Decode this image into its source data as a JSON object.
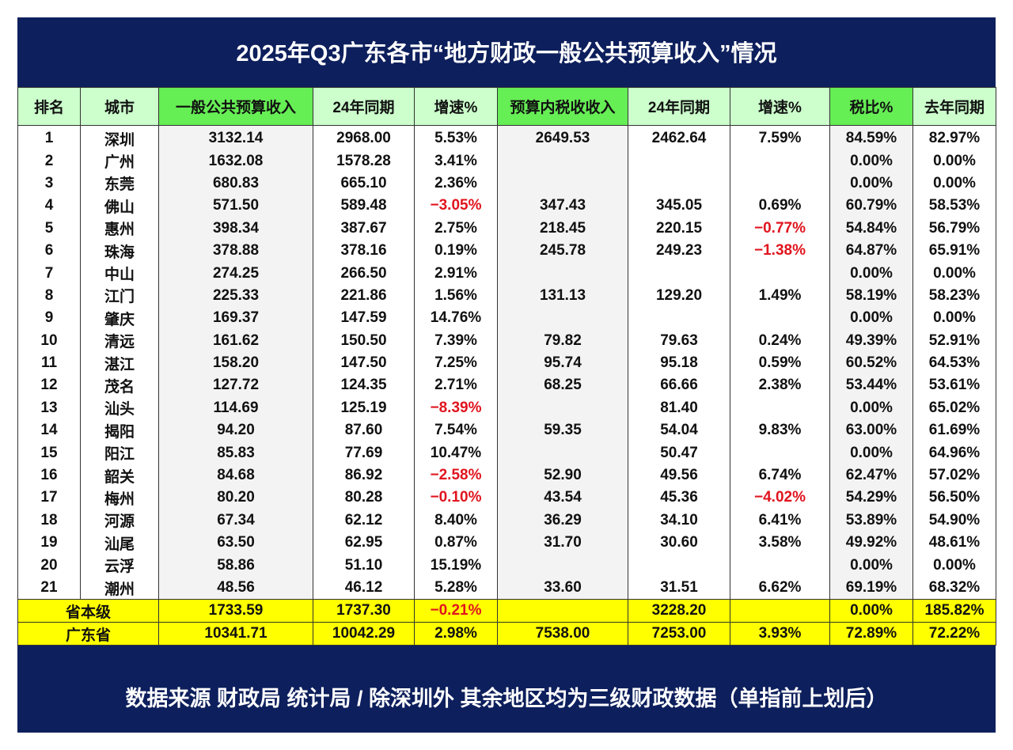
{
  "title": "2025年Q3广东各市“地方财政一般公共预算收入”情况",
  "headers": [
    "排名",
    "城市",
    "一般公共预算收入",
    "24年同期",
    "增速%",
    "预算内税收收入",
    "24年同期",
    "增速%",
    "税比%",
    "去年同期"
  ],
  "colors": {
    "banner": "#0d1f5c",
    "header_highlight": "#66ee55",
    "header_pale": "#ccffcc",
    "total_rows": "#ffff00",
    "negative": "#e0141e"
  },
  "rows": [
    [
      "1",
      "深圳",
      "3132.14",
      "2968.00",
      "5.53%",
      "2649.53",
      "2462.64",
      "7.59%",
      "84.59%",
      "82.97%"
    ],
    [
      "2",
      "广州",
      "1632.08",
      "1578.28",
      "3.41%",
      "",
      "",
      "",
      "0.00%",
      "0.00%"
    ],
    [
      "3",
      "东莞",
      "680.83",
      "665.10",
      "2.36%",
      "",
      "",
      "",
      "0.00%",
      "0.00%"
    ],
    [
      "4",
      "佛山",
      "571.50",
      "589.48",
      "−3.05%",
      "347.43",
      "345.05",
      "0.69%",
      "60.79%",
      "58.53%"
    ],
    [
      "5",
      "惠州",
      "398.34",
      "387.67",
      "2.75%",
      "218.45",
      "220.15",
      "−0.77%",
      "54.84%",
      "56.79%"
    ],
    [
      "6",
      "珠海",
      "378.88",
      "378.16",
      "0.19%",
      "245.78",
      "249.23",
      "−1.38%",
      "64.87%",
      "65.91%"
    ],
    [
      "7",
      "中山",
      "274.25",
      "266.50",
      "2.91%",
      "",
      "",
      "",
      "0.00%",
      "0.00%"
    ],
    [
      "8",
      "江门",
      "225.33",
      "221.86",
      "1.56%",
      "131.13",
      "129.20",
      "1.49%",
      "58.19%",
      "58.23%"
    ],
    [
      "9",
      "肇庆",
      "169.37",
      "147.59",
      "14.76%",
      "",
      "",
      "",
      "0.00%",
      "0.00%"
    ],
    [
      "10",
      "清远",
      "161.62",
      "150.50",
      "7.39%",
      "79.82",
      "79.63",
      "0.24%",
      "49.39%",
      "52.91%"
    ],
    [
      "11",
      "湛江",
      "158.20",
      "147.50",
      "7.25%",
      "95.74",
      "95.18",
      "0.59%",
      "60.52%",
      "64.53%"
    ],
    [
      "12",
      "茂名",
      "127.72",
      "124.35",
      "2.71%",
      "68.25",
      "66.66",
      "2.38%",
      "53.44%",
      "53.61%"
    ],
    [
      "13",
      "汕头",
      "114.69",
      "125.19",
      "−8.39%",
      "",
      "81.40",
      "",
      "0.00%",
      "65.02%"
    ],
    [
      "14",
      "揭阳",
      "94.20",
      "87.60",
      "7.54%",
      "59.35",
      "54.04",
      "9.83%",
      "63.00%",
      "61.69%"
    ],
    [
      "15",
      "阳江",
      "85.83",
      "77.69",
      "10.47%",
      "",
      "50.47",
      "",
      "0.00%",
      "64.96%"
    ],
    [
      "16",
      "韶关",
      "84.68",
      "86.92",
      "−2.58%",
      "52.90",
      "49.56",
      "6.74%",
      "62.47%",
      "57.02%"
    ],
    [
      "17",
      "梅州",
      "80.20",
      "80.28",
      "−0.10%",
      "43.54",
      "45.36",
      "−4.02%",
      "54.29%",
      "56.50%"
    ],
    [
      "18",
      "河源",
      "67.34",
      "62.12",
      "8.40%",
      "36.29",
      "34.10",
      "6.41%",
      "53.89%",
      "54.90%"
    ],
    [
      "19",
      "汕尾",
      "63.50",
      "62.95",
      "0.87%",
      "31.70",
      "30.60",
      "3.58%",
      "49.92%",
      "48.61%"
    ],
    [
      "20",
      "云浮",
      "58.86",
      "51.10",
      "15.19%",
      "",
      "",
      "",
      "0.00%",
      "0.00%"
    ],
    [
      "21",
      "潮州",
      "48.56",
      "46.12",
      "5.28%",
      "33.60",
      "31.51",
      "6.62%",
      "69.19%",
      "68.32%"
    ]
  ],
  "totals": [
    [
      "省本级",
      "1733.59",
      "1737.30",
      "−0.21%",
      "",
      "3228.20",
      "",
      "0.00%",
      "185.82%"
    ],
    [
      "广东省",
      "10341.71",
      "10042.29",
      "2.98%",
      "7538.00",
      "7253.00",
      "3.93%",
      "72.89%",
      "72.22%"
    ]
  ],
  "footer": "数据来源 财政局 统计局 / 除深圳外 其余地区均为三级财政数据（单指前上划后）"
}
